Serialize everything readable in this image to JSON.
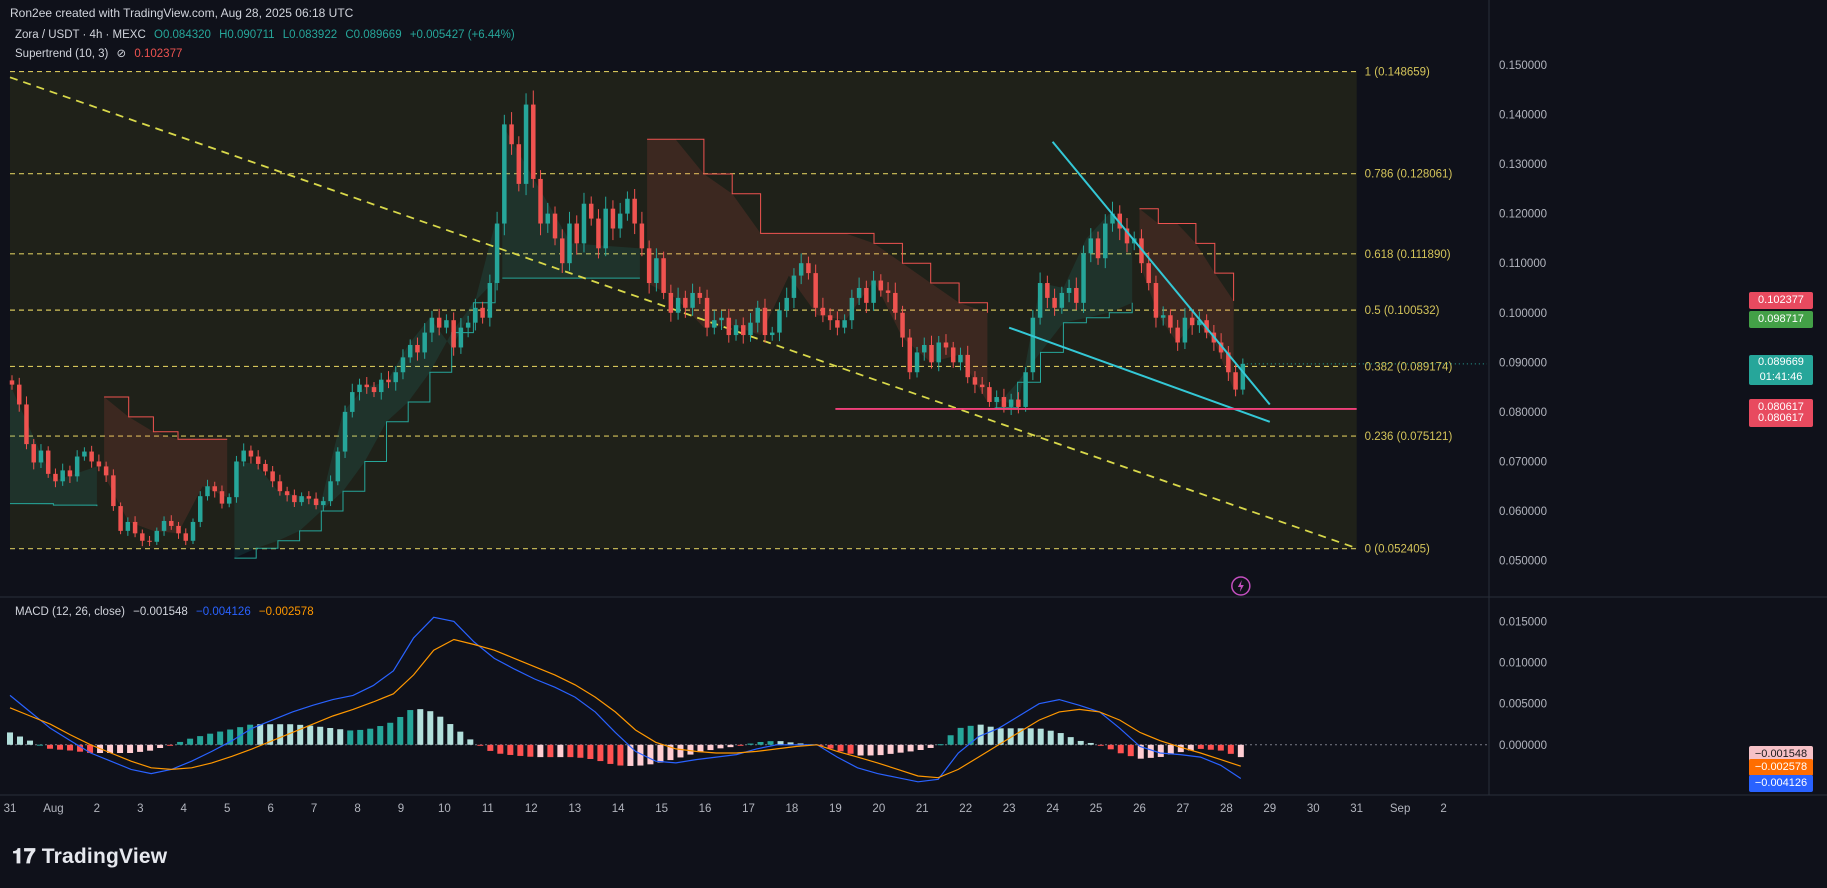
{
  "credit": "Ron2ee created with TradingView.com, Aug 28, 2025 06:18 UTC",
  "symbol_line": {
    "pair": "Zora / USDT · 4h · MEXC",
    "open": "O0.084320",
    "high": "H0.090711",
    "low": "L0.083922",
    "close": "C0.089669",
    "change": "+0.005427 (+6.44%)"
  },
  "supertrend_line": {
    "name": "Supertrend (10, 3)",
    "symbol": "⊘",
    "value": "0.102377"
  },
  "macd_line": {
    "name": "MACD (12, 26, close)",
    "hist": "−0.001548",
    "macd": "−0.004126",
    "signal": "−0.002578"
  },
  "logo": {
    "mark_icon": "tradingview-logo-icon",
    "text": "TradingView"
  },
  "colors": {
    "background": "#0f111a",
    "up": "#26a69a",
    "down": "#ef5350",
    "fib": "#d4c45a",
    "trendline": "#34c8d6",
    "support": "#f0407a",
    "macd": "#2962ff",
    "signal": "#ff9800",
    "badge_red": "#e84a5f",
    "badge_green": "#43a047",
    "badge_blue": "#2962ff",
    "badge_orange": "#ff6d00"
  },
  "price_badges": [
    {
      "value": "0.102377",
      "color": "#e84a5f",
      "y": 0.102377
    },
    {
      "value": "0.098717",
      "color": "#43a047",
      "y": 0.098717
    },
    {
      "value": "0.089669",
      "value2": "01:41:46",
      "color": "#26a69a",
      "y": 0.089669
    },
    {
      "value": "0.080617",
      "color": "#e84a5f",
      "y": 0.08085
    },
    {
      "value": "0.080617",
      "color": "#e84a5f",
      "y": 0.0787
    }
  ],
  "macd_badges": [
    {
      "value": "−0.001548",
      "color": "#f6c1c7",
      "text_color": "#1a1a1a",
      "y": -0.00123
    },
    {
      "value": "−0.002578",
      "color": "#ff6d00",
      "text_color": "#ffffff",
      "y": -0.0028
    },
    {
      "value": "−0.004126",
      "color": "#2962ff",
      "text_color": "#ffffff",
      "y": -0.0047
    }
  ],
  "chart_data": {
    "type": "candlestick",
    "timeframe": "4h",
    "price_axis": {
      "ylim": [
        0.0475,
        0.152
      ],
      "ticks": [
        0.15,
        0.14,
        0.13,
        0.12,
        0.11,
        0.1,
        0.09,
        0.08,
        0.07,
        0.06,
        0.05
      ],
      "tick_labels": [
        "0.150000",
        "0.140000",
        "0.130000",
        "0.120000",
        "0.110000",
        "0.100000",
        "0.090000",
        "0.080000",
        "0.070000",
        "0.060000",
        "0.050000"
      ]
    },
    "macd_axis": {
      "ylim": [
        -0.0055,
        0.017
      ],
      "ticks": [
        0.015,
        0.01,
        0.005,
        0.0
      ],
      "tick_labels": [
        "0.015000",
        "0.010000",
        "0.005000",
        "0.000000"
      ]
    },
    "x_axis": {
      "start": "2025-07-31T00:00",
      "end": "2025-09-03T00:00",
      "labels": [
        {
          "t": "2025-07-31T00:00",
          "label": "31"
        },
        {
          "t": "2025-08-01T00:00",
          "label": "Aug"
        },
        {
          "t": "2025-08-02T00:00",
          "label": "2"
        },
        {
          "t": "2025-08-03T00:00",
          "label": "3"
        },
        {
          "t": "2025-08-04T00:00",
          "label": "4"
        },
        {
          "t": "2025-08-05T00:00",
          "label": "5"
        },
        {
          "t": "2025-08-06T00:00",
          "label": "6"
        },
        {
          "t": "2025-08-07T00:00",
          "label": "7"
        },
        {
          "t": "2025-08-08T00:00",
          "label": "8"
        },
        {
          "t": "2025-08-09T00:00",
          "label": "9"
        },
        {
          "t": "2025-08-10T00:00",
          "label": "10"
        },
        {
          "t": "2025-08-11T00:00",
          "label": "11"
        },
        {
          "t": "2025-08-12T00:00",
          "label": "12"
        },
        {
          "t": "2025-08-13T00:00",
          "label": "13"
        },
        {
          "t": "2025-08-14T00:00",
          "label": "14"
        },
        {
          "t": "2025-08-15T00:00",
          "label": "15"
        },
        {
          "t": "2025-08-16T00:00",
          "label": "16"
        },
        {
          "t": "2025-08-17T00:00",
          "label": "17"
        },
        {
          "t": "2025-08-18T00:00",
          "label": "18"
        },
        {
          "t": "2025-08-19T00:00",
          "label": "19"
        },
        {
          "t": "2025-08-20T00:00",
          "label": "20"
        },
        {
          "t": "2025-08-21T00:00",
          "label": "21"
        },
        {
          "t": "2025-08-22T00:00",
          "label": "22"
        },
        {
          "t": "2025-08-23T00:00",
          "label": "23"
        },
        {
          "t": "2025-08-24T00:00",
          "label": "24"
        },
        {
          "t": "2025-08-25T00:00",
          "label": "25"
        },
        {
          "t": "2025-08-26T00:00",
          "label": "26"
        },
        {
          "t": "2025-08-27T00:00",
          "label": "27"
        },
        {
          "t": "2025-08-28T00:00",
          "label": "28"
        },
        {
          "t": "2025-08-29T00:00",
          "label": "29"
        },
        {
          "t": "2025-08-30T00:00",
          "label": "30"
        },
        {
          "t": "2025-08-31T00:00",
          "label": "31"
        },
        {
          "t": "2025-09-01T00:00",
          "label": "Sep"
        },
        {
          "t": "2025-09-02T00:00",
          "label": "2"
        }
      ]
    },
    "candles": {
      "start": "2025-07-31T00:00",
      "interval_hours": 4,
      "closes": [
        0.0855,
        0.0815,
        0.0735,
        0.0698,
        0.0722,
        0.0675,
        0.066,
        0.0682,
        0.067,
        0.071,
        0.072,
        0.07,
        0.069,
        0.0672,
        0.061,
        0.056,
        0.0578,
        0.0555,
        0.054,
        0.0538,
        0.056,
        0.058,
        0.057,
        0.0555,
        0.054,
        0.0578,
        0.063,
        0.065,
        0.064,
        0.0615,
        0.0628,
        0.07,
        0.0722,
        0.071,
        0.0695,
        0.068,
        0.066,
        0.064,
        0.0632,
        0.0618,
        0.063,
        0.0625,
        0.0612,
        0.062,
        0.066,
        0.072,
        0.08,
        0.084,
        0.0855,
        0.085,
        0.084,
        0.0865,
        0.086,
        0.088,
        0.091,
        0.0935,
        0.092,
        0.096,
        0.099,
        0.097,
        0.0985,
        0.093,
        0.097,
        0.098,
        0.101,
        0.099,
        0.106,
        0.118,
        0.138,
        0.134,
        0.126,
        0.142,
        0.127,
        0.118,
        0.12,
        0.115,
        0.11,
        0.118,
        0.114,
        0.122,
        0.119,
        0.113,
        0.121,
        0.117,
        0.12,
        0.123,
        0.118,
        0.113,
        0.106,
        0.111,
        0.104,
        0.1,
        0.103,
        0.101,
        0.104,
        0.103,
        0.097,
        0.0985,
        0.099,
        0.0955,
        0.0975,
        0.0955,
        0.098,
        0.101,
        0.0955,
        0.096,
        0.1005,
        0.103,
        0.1075,
        0.11,
        0.108,
        0.101,
        0.0995,
        0.0985,
        0.097,
        0.0985,
        0.103,
        0.105,
        0.102,
        0.1065,
        0.1045,
        0.104,
        0.1,
        0.095,
        0.088,
        0.092,
        0.0935,
        0.09,
        0.094,
        0.093,
        0.09,
        0.0915,
        0.087,
        0.0855,
        0.085,
        0.082,
        0.083,
        0.081,
        0.0825,
        0.081,
        0.088,
        0.099,
        0.106,
        0.103,
        0.101,
        0.104,
        0.105,
        0.102,
        0.112,
        0.115,
        0.111,
        0.118,
        0.12,
        0.117,
        0.114,
        0.115,
        0.11,
        0.106,
        0.099,
        0.0995,
        0.097,
        0.094,
        0.099,
        0.0975,
        0.0985,
        0.096,
        0.094,
        0.092,
        0.088,
        0.0845,
        0.0897
      ],
      "opens_rule": "each candle opens at the previous close",
      "note_last": "last candle O 0.084320 H 0.090711 L 0.083922 C 0.089669"
    },
    "supertrend": {
      "value": 0.102377,
      "segments": [
        {
          "side": "support",
          "from": "2025-07-31T00:00",
          "to": "2025-08-02T00:00",
          "values": [
            0.0615,
            0.0612,
            0.061
          ]
        },
        {
          "side": "resistance",
          "from": "2025-08-02T04:00",
          "to": "2025-08-05T00:00",
          "values": [
            0.083,
            0.079,
            0.076,
            0.0745,
            0.0745,
            0.0745
          ]
        },
        {
          "side": "support",
          "from": "2025-08-05T04:00",
          "to": "2025-08-11T04:00",
          "values": [
            0.0505,
            0.0525,
            0.054,
            0.056,
            0.06,
            0.064,
            0.07,
            0.078,
            0.082,
            0.088,
            0.096,
            0.102,
            0.1065
          ]
        },
        {
          "side": "support",
          "from": "2025-08-11T08:00",
          "to": "2025-08-14T12:00",
          "values": [
            0.107,
            0.107,
            0.107
          ]
        },
        {
          "side": "resistance",
          "from": "2025-08-14T16:00",
          "to": "2025-08-22T12:00",
          "values": [
            0.135,
            0.135,
            0.128,
            0.124,
            0.116,
            0.116,
            0.116,
            0.116,
            0.114,
            0.11,
            0.106,
            0.102,
            0.1
          ]
        },
        {
          "side": "support",
          "from": "2025-08-22T16:00",
          "to": "2025-08-25T20:00",
          "values": [
            0.0808,
            0.086,
            0.092,
            0.098,
            0.099,
            0.1,
            0.102
          ]
        },
        {
          "side": "resistance",
          "from": "2025-08-26T00:00",
          "to": "2025-08-28T04:00",
          "values": [
            0.121,
            0.118,
            0.118,
            0.114,
            0.108,
            0.1024
          ]
        }
      ]
    },
    "fibonacci": {
      "x_from": "2025-07-31T00:00",
      "x_to": "2025-08-31T00:00",
      "levels": [
        {
          "ratio": "1",
          "price": 0.148659,
          "label": "1 (0.148659)"
        },
        {
          "ratio": "0.786",
          "price": 0.128061,
          "label": "0.786 (0.128061)"
        },
        {
          "ratio": "0.618",
          "price": 0.11189,
          "label": "0.618 (0.111890)"
        },
        {
          "ratio": "0.5",
          "price": 0.100532,
          "label": "0.5 (0.100532)"
        },
        {
          "ratio": "0.382",
          "price": 0.089174,
          "label": "0.382 (0.089174)"
        },
        {
          "ratio": "0.236",
          "price": 0.075121,
          "label": "0.236 (0.075121)"
        },
        {
          "ratio": "0",
          "price": 0.052405,
          "label": "0 (0.052405)"
        }
      ]
    },
    "drawings": {
      "diagonal_trendline": {
        "from": {
          "t": "2025-07-31T00:00",
          "y": 0.1475
        },
        "to": {
          "t": "2025-08-31T00:00",
          "y": 0.0525
        }
      },
      "wedge_upper": {
        "from": {
          "t": "2025-08-24T00:00",
          "y": 0.1345
        },
        "to": {
          "t": "2025-08-29T00:00",
          "y": 0.0815
        }
      },
      "wedge_lower": {
        "from": {
          "t": "2025-08-23T00:00",
          "y": 0.097
        },
        "to": {
          "t": "2025-08-29T00:00",
          "y": 0.078
        }
      },
      "support_line": {
        "from": {
          "t": "2025-08-19T00:00",
          "y": 0.0806
        },
        "to": {
          "t": "2025-08-31T00:00",
          "y": 0.0806
        }
      }
    },
    "macd": {
      "params": "12, 26, close",
      "macd_line": [
        0.006,
        0.004,
        0.002,
        0.0005,
        -0.001,
        -0.002,
        -0.003,
        -0.0035,
        -0.003,
        -0.002,
        -0.0008,
        0.0005,
        0.002,
        0.003,
        0.004,
        0.0048,
        0.0055,
        0.006,
        0.0072,
        0.009,
        0.013,
        0.0155,
        0.015,
        0.0125,
        0.0105,
        0.0092,
        0.008,
        0.007,
        0.0058,
        0.004,
        0.0015,
        -0.0008,
        -0.002,
        -0.0022,
        -0.0018,
        -0.0015,
        -0.0012,
        -0.0005,
        0.0,
        0.0,
        0.0,
        -0.0015,
        -0.0028,
        -0.0035,
        -0.004,
        -0.0045,
        -0.0042,
        -0.001,
        0.001,
        0.002,
        0.0035,
        0.005,
        0.0055,
        0.0048,
        0.004,
        0.002,
        -0.0002,
        -0.001,
        -0.0012,
        -0.0015,
        -0.0025,
        -0.0041
      ],
      "signal_line": [
        0.0045,
        0.0035,
        0.0025,
        0.0012,
        0.0,
        -0.001,
        -0.002,
        -0.0028,
        -0.003,
        -0.0028,
        -0.0022,
        -0.0014,
        -0.0005,
        0.0005,
        0.0015,
        0.0025,
        0.0035,
        0.0043,
        0.0052,
        0.0062,
        0.0085,
        0.0115,
        0.0128,
        0.0122,
        0.0115,
        0.0105,
        0.0095,
        0.0085,
        0.0073,
        0.0058,
        0.004,
        0.0018,
        0.0003,
        -0.0005,
        -0.0008,
        -0.001,
        -0.001,
        -0.0008,
        -0.0005,
        -0.0002,
        0.0,
        -0.0008,
        -0.0015,
        -0.0022,
        -0.003,
        -0.0038,
        -0.004,
        -0.003,
        -0.0015,
        0.0,
        0.0015,
        0.003,
        0.004,
        0.0043,
        0.004,
        0.003,
        0.0015,
        0.0005,
        -0.0003,
        -0.001,
        -0.0018,
        -0.0026
      ]
    }
  }
}
